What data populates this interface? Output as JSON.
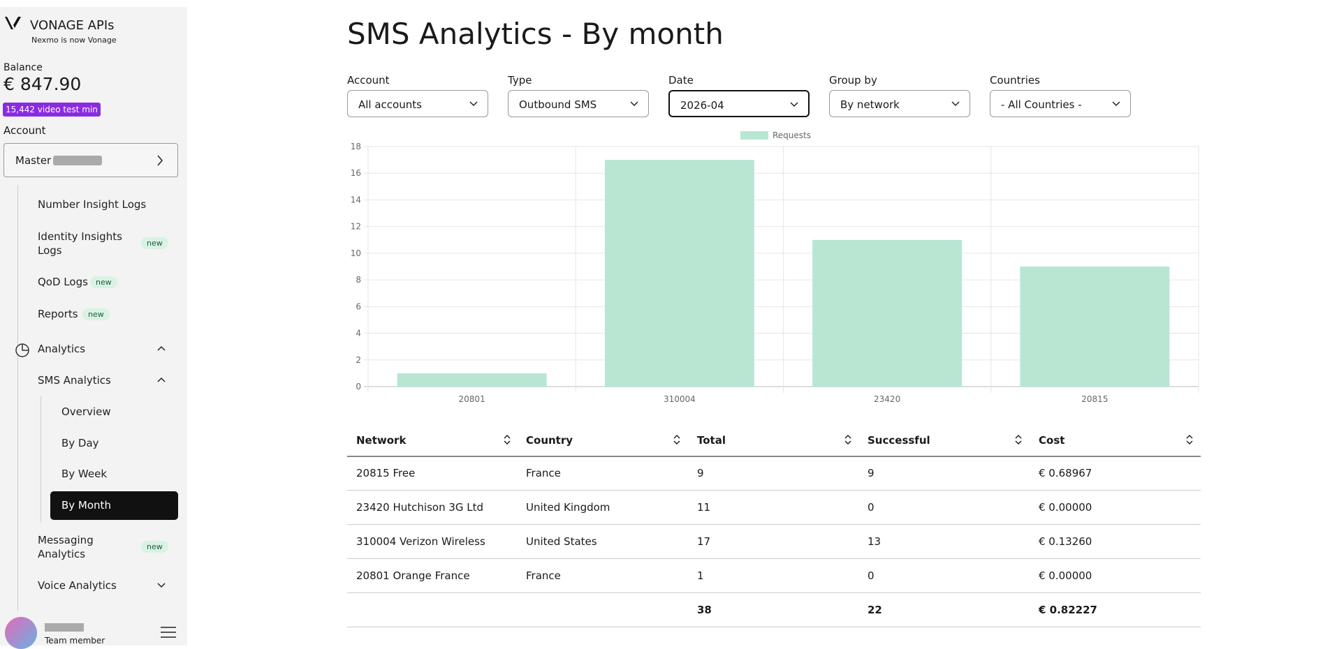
{
  "sidebar": {
    "brand": "VONAGE APIs",
    "tagline": "Nexmo is now Vonage",
    "balance_label": "Balance",
    "balance": "€ 847.90",
    "video_badge": "15,442 video test min",
    "account_label": "Account",
    "account_value": "Master (",
    "nav": [
      {
        "label": "Number Insight Logs"
      },
      {
        "label": "Identity Insights Logs",
        "badge": "new"
      },
      {
        "label": "QoD Logs",
        "badge": "new"
      },
      {
        "label": "Reports",
        "badge": "new"
      },
      {
        "label": "Analytics"
      },
      {
        "label": "SMS Analytics"
      },
      {
        "label": "Overview"
      },
      {
        "label": "By Day"
      },
      {
        "label": "By Week"
      },
      {
        "label": "By Month"
      },
      {
        "label": "Messaging Analytics",
        "badge": "new"
      },
      {
        "label": "Voice Analytics"
      }
    ],
    "user_role": "Team member"
  },
  "header": {
    "title": "SMS Analytics - By month"
  },
  "filters": [
    {
      "label": "Account",
      "value": "All accounts"
    },
    {
      "label": "Type",
      "value": "Outbound SMS"
    },
    {
      "label": "Date",
      "value": "2026-04"
    },
    {
      "label": "Group by",
      "value": "By network"
    },
    {
      "label": "Countries",
      "value": "- All Countries -"
    }
  ],
  "chart_data": {
    "type": "bar",
    "categories": [
      "20801",
      "310004",
      "23420",
      "20815"
    ],
    "series": [
      {
        "name": "Requests",
        "color": "#b8e6d3",
        "values": [
          1,
          17,
          11,
          9
        ]
      }
    ],
    "ylim": [
      0,
      18
    ],
    "yticks": [
      0,
      2,
      4,
      6,
      8,
      10,
      12,
      14,
      16,
      18
    ],
    "grid": true,
    "legend": "top"
  },
  "table": {
    "headers": [
      "Network",
      "Country",
      "Total",
      "Successful",
      "Cost"
    ],
    "rows": [
      [
        "20815 Free",
        "France",
        "9",
        "9",
        "€ 0.68967"
      ],
      [
        "23420 Hutchison 3G Ltd",
        "United Kingdom",
        "11",
        "0",
        "€ 0.00000"
      ],
      [
        "310004 Verizon Wireless",
        "United States",
        "17",
        "13",
        "€ 0.13260"
      ],
      [
        "20801 Orange France",
        "France",
        "1",
        "0",
        "€ 0.00000"
      ]
    ],
    "totals": [
      "38",
      "22",
      "€ 0.82227"
    ]
  }
}
